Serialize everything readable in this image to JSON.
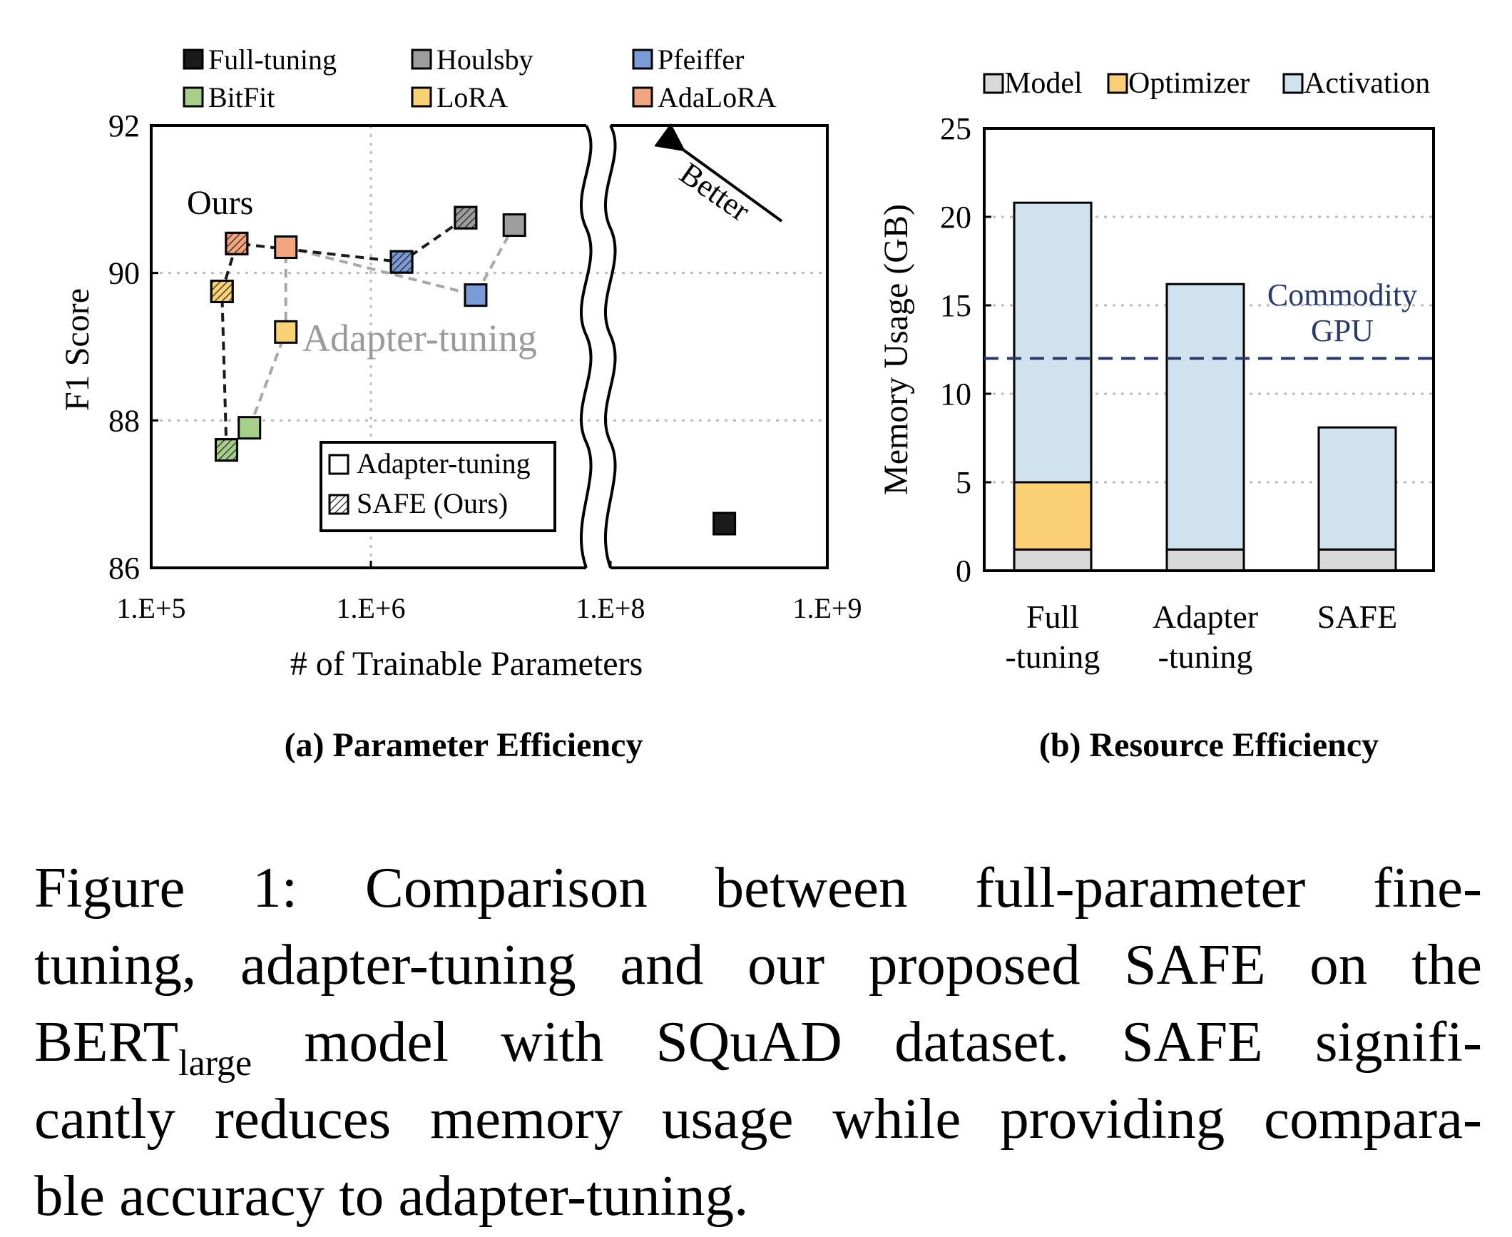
{
  "chart_data": [
    {
      "type": "scatter",
      "subtitle": "(a) Parameter Efficiency",
      "xlabel": "# of Trainable Parameters",
      "ylabel": "F1 Score",
      "xscale": "log",
      "x_break": "between 1.E+7 and 1.E+8",
      "x_ticks": [
        "1.E+5",
        "1.E+6",
        "1.E+8",
        "1.E+9"
      ],
      "y_ticks": [
        "86",
        "88",
        "90",
        "92"
      ],
      "ylim": [
        86,
        92
      ],
      "grid": true,
      "legend": {
        "placement": "top",
        "entries": [
          "Full-tuning",
          "Houlsby",
          "Pfeiffer",
          "BitFit",
          "LoRA",
          "AdaLoRA"
        ]
      },
      "series": [
        {
          "name": "Full-tuning",
          "color": "#1a1a1a",
          "points": [
            {
              "x": 335000000,
              "y": 86.6,
              "safe": false
            }
          ]
        },
        {
          "name": "Houlsby",
          "color": "#9e9e9e",
          "points": [
            {
              "x": 4500000,
              "y": 90.65,
              "safe": false
            },
            {
              "x": 2700000,
              "y": 90.75,
              "safe": true
            }
          ]
        },
        {
          "name": "Pfeiffer",
          "color": "#7b9bd8",
          "points": [
            {
              "x": 3000000,
              "y": 89.7,
              "safe": false
            },
            {
              "x": 1380000,
              "y": 90.15,
              "safe": true
            }
          ]
        },
        {
          "name": "BitFit",
          "color": "#a6cf8a",
          "points": [
            {
              "x": 280000,
              "y": 87.9,
              "safe": false
            },
            {
              "x": 220000,
              "y": 87.6,
              "safe": true
            }
          ]
        },
        {
          "name": "LoRA",
          "color": "#fad274",
          "points": [
            {
              "x": 410000,
              "y": 89.2,
              "safe": false
            },
            {
              "x": 210000,
              "y": 89.75,
              "safe": true
            }
          ]
        },
        {
          "name": "AdaLoRA",
          "color": "#f2a57e",
          "points": [
            {
              "x": 410000,
              "y": 90.35,
              "safe": false
            },
            {
              "x": 245000,
              "y": 90.4,
              "safe": true
            }
          ]
        }
      ],
      "paths": [
        {
          "group": "Adapter-tuning",
          "color": "#a8a8a8",
          "order": [
            "BitFit",
            "LoRA",
            "AdaLoRA",
            "Pfeiffer",
            "Houlsby"
          ],
          "safe": false
        },
        {
          "group": "SAFE (Ours)",
          "color": "#1a1a1a",
          "order": [
            "BitFit",
            "LoRA",
            "AdaLoRA",
            "Pfeiffer",
            "Houlsby"
          ],
          "safe": true
        }
      ],
      "annotations": [
        "Ours",
        "Adapter-tuning",
        "Better"
      ],
      "inner_legend": {
        "entries": [
          "Adapter-tuning",
          "SAFE (Ours)"
        ]
      }
    },
    {
      "type": "bar",
      "stacked": true,
      "subtitle": "(b) Resource Efficiency",
      "ylabel": "Memory Usage (GB)",
      "ylim": [
        0,
        25
      ],
      "y_ticks": [
        "0",
        "5",
        "10",
        "15",
        "20",
        "25"
      ],
      "grid": true,
      "categories": [
        [
          "Full",
          "-tuning"
        ],
        [
          "Adapter",
          "-tuning"
        ],
        [
          "SAFE"
        ]
      ],
      "series": [
        {
          "name": "Model",
          "color": "#d9d9d9",
          "values": [
            1.2,
            1.2,
            1.2
          ]
        },
        {
          "name": "Optimizer",
          "color": "#fbcf74",
          "values": [
            3.8,
            0,
            0
          ]
        },
        {
          "name": "Activation",
          "color": "#cfe2ed",
          "values": [
            15.8,
            15.0,
            6.9
          ]
        }
      ],
      "legend": {
        "placement": "top",
        "entries": [
          "Model",
          "Optimizer",
          "Activation"
        ]
      },
      "reference_line": {
        "y": 12,
        "label_lines": [
          "Commodity",
          "GPU"
        ],
        "color": "#2a3a6c"
      }
    }
  ],
  "caption": {
    "lines": [
      "Figure 1:  Comparison between full-parameter fine-",
      "tuning, adapter-tuning and our proposed SAFE on the",
      "BERT",
      "large",
      " model with SQuAD dataset.  SAFE signifi-",
      "cantly reduces memory usage while providing compara-",
      "ble accuracy to adapter-tuning."
    ]
  }
}
